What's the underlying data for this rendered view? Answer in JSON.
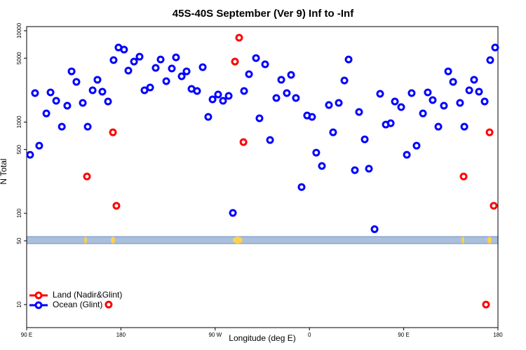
{
  "chart_data": {
    "type": "scatter",
    "title": "45S-40S September (Ver 9)   Inf to -Inf",
    "x_label": "Longitude (deg E)",
    "y_label": "N Total",
    "log_y": true,
    "legend": "bottom-left",
    "xlim": [
      90,
      540
    ],
    "ylim": [
      5.6,
      11100
    ],
    "xticks": [
      {
        "value": 90,
        "label": "90 E"
      },
      180,
      {
        "value": 270,
        "label": "90 W"
      },
      {
        "value": 360,
        "label": "0"
      },
      {
        "value": 450,
        "label": "90 E"
      },
      {
        "value": 540,
        "label": "180"
      }
    ],
    "yticks": [
      10,
      50,
      100,
      500,
      1000,
      5000,
      10000
    ],
    "series": [
      {
        "name": "Land (Nadir&Glint)",
        "color": "#ff0000",
        "x": [
          147.6,
          172.4,
          175.7,
          288.9,
          292.9,
          297,
          507.2,
          532,
          536,
          168.3,
          528.6
        ],
        "values": [
          253,
          771,
          121,
          4592,
          8380,
          603,
          253,
          771,
          121,
          10,
          10
        ]
      },
      {
        "name": "Ocean (Glint)",
        "color": "#0000ff",
        "x": [
          93.3,
          98,
          102,
          108.8,
          112.8,
          118.2,
          123.6,
          128.8,
          132.9,
          137.5,
          143.6,
          148.3,
          153,
          157.6,
          162.3,
          167.7,
          173,
          177.7,
          183,
          187.1,
          192.5,
          197.8,
          202.5,
          207.9,
          213.2,
          217.9,
          223.3,
          228.6,
          232.6,
          238,
          242.7,
          247.4,
          252.7,
          258.1,
          263.4,
          267.5,
          272.8,
          277.5,
          282.9,
          286.9,
          297.6,
          302.3,
          309,
          312.3,
          317.7,
          322.4,
          328.4,
          333.1,
          338.4,
          342.5,
          347.1,
          352.5,
          357.8,
          362.5,
          366.5,
          371.9,
          378.6,
          382.6,
          388,
          393.4,
          397.4,
          403.4,
          407.4,
          412.8,
          416.8,
          422.2,
          427.5,
          432.9,
          437.6,
          441.6,
          447.6,
          453,
          457.6,
          462.3,
          468.4,
          473,
          477.7,
          483.1,
          488.4,
          492.5,
          497.2,
          503.8,
          507.9,
          512.6,
          517.2,
          521.9,
          527.3,
          532.6,
          537.3
        ],
        "values": [
          438,
          2075,
          551,
          1242,
          2113,
          1709,
          889,
          1510,
          3589,
          2754,
          1621,
          889,
          2228,
          2904,
          2148,
          1679,
          4764,
          6546,
          6209,
          3656,
          4592,
          5200,
          2228,
          2388,
          3917,
          4842,
          2800,
          3855,
          5105,
          3170,
          3589,
          2306,
          2188,
          3990,
          1138,
          1770,
          2004,
          1709,
          1932,
          101,
          2188,
          3342,
          5020,
          1099,
          4285,
          635,
          1833,
          2904,
          2075,
          3283,
          1833,
          194,
          1178,
          1138,
          462,
          330,
          1535,
          771,
          1621,
          2851,
          4842,
          297,
          1288,
          646,
          308,
          67,
          2037,
          937,
          970,
          1679,
          1456,
          438,
          2075,
          551,
          1242,
          2113,
          1738,
          889,
          1510,
          3589,
          2754,
          1621,
          889,
          2228,
          2904,
          2148,
          1679,
          4764,
          6546
        ]
      }
    ]
  }
}
